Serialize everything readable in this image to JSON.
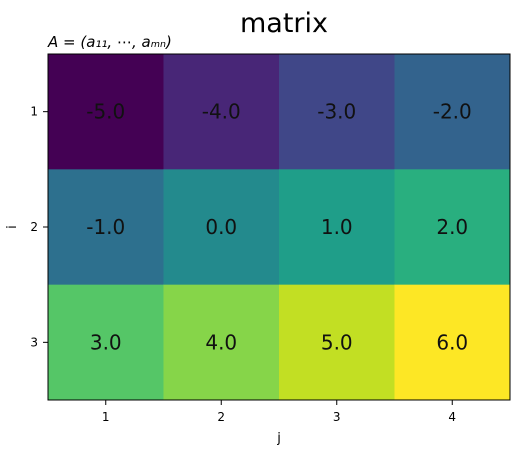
{
  "chart_data": {
    "type": "heatmap",
    "title": "matrix",
    "subtitle": "A = (a₁₁, ⋯, aₘₙ)",
    "xlabel": "j",
    "ylabel": "i",
    "x_categories": [
      "1",
      "2",
      "3",
      "4"
    ],
    "y_categories": [
      "1",
      "2",
      "3"
    ],
    "values": [
      [
        -5.0,
        -4.0,
        -3.0,
        -2.0
      ],
      [
        -1.0,
        0.0,
        1.0,
        2.0
      ],
      [
        3.0,
        4.0,
        5.0,
        6.0
      ]
    ],
    "value_labels": [
      [
        "-5.0",
        "-4.0",
        "-3.0",
        "-2.0"
      ],
      [
        "-1.0",
        "0.0",
        "1.0",
        "2.0"
      ],
      [
        "3.0",
        "4.0",
        "5.0",
        "6.0"
      ]
    ],
    "colormap": "viridis",
    "cell_colors": [
      [
        "#440154",
        "#482677",
        "#404788",
        "#33638d"
      ],
      [
        "#2d708e",
        "#238a8d",
        "#1f9e89",
        "#29af7f"
      ],
      [
        "#55c667",
        "#86d549",
        "#c2df23",
        "#fde725"
      ]
    ],
    "grid": false
  }
}
